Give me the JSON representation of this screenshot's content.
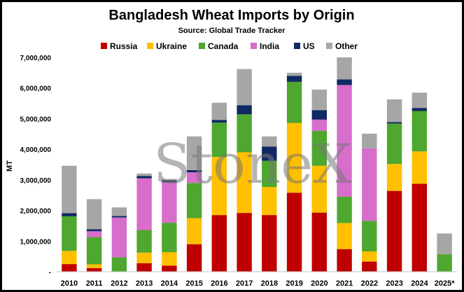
{
  "chart_data": {
    "type": "bar",
    "stacked": true,
    "title": "Bangladesh Wheat Imports by Origin",
    "subtitle": "Source: Global Trade Tracker",
    "watermark": "StoneX",
    "xlabel": "",
    "ylabel": "MT",
    "ylim": [
      0,
      7000000
    ],
    "yticks": [
      "-",
      "1,000,000",
      "2,000,000",
      "3,000,000",
      "4,000,000",
      "5,000,000",
      "6,000,000",
      "7,000,000"
    ],
    "grid": false,
    "legend_position": "top",
    "categories": [
      "2010",
      "2011",
      "2012",
      "2013",
      "2014",
      "2015",
      "2016",
      "2017",
      "2018",
      "2019",
      "2020",
      "2021",
      "2022",
      "2023",
      "2024",
      "2025*"
    ],
    "series": [
      {
        "name": "Russia",
        "color": "#c00000",
        "values": [
          250000,
          120000,
          0,
          280000,
          200000,
          900000,
          1850000,
          1920000,
          1850000,
          2580000,
          1930000,
          740000,
          330000,
          2640000,
          2870000,
          0
        ]
      },
      {
        "name": "Ukraine",
        "color": "#ffc000",
        "values": [
          430000,
          120000,
          0,
          340000,
          440000,
          850000,
          1900000,
          1980000,
          920000,
          2280000,
          1530000,
          850000,
          330000,
          880000,
          1060000,
          0
        ]
      },
      {
        "name": "Canada",
        "color": "#4ea72e",
        "values": [
          1130000,
          890000,
          470000,
          740000,
          960000,
          1150000,
          1120000,
          1240000,
          850000,
          1340000,
          1140000,
          860000,
          1000000,
          1320000,
          1320000,
          570000
        ]
      },
      {
        "name": "India",
        "color": "#d86ecc",
        "values": [
          0,
          190000,
          1300000,
          1690000,
          1320000,
          350000,
          0,
          0,
          0,
          0,
          370000,
          3650000,
          2370000,
          0,
          0,
          0
        ]
      },
      {
        "name": "US",
        "color": "#0e2a62",
        "values": [
          100000,
          70000,
          50000,
          80000,
          70000,
          70000,
          90000,
          300000,
          470000,
          200000,
          310000,
          180000,
          0,
          50000,
          100000,
          0
        ]
      },
      {
        "name": "Other",
        "color": "#a6a6a6",
        "values": [
          1550000,
          980000,
          280000,
          80000,
          40000,
          1100000,
          560000,
          1180000,
          330000,
          100000,
          670000,
          720000,
          480000,
          740000,
          500000,
          680000
        ]
      }
    ]
  }
}
